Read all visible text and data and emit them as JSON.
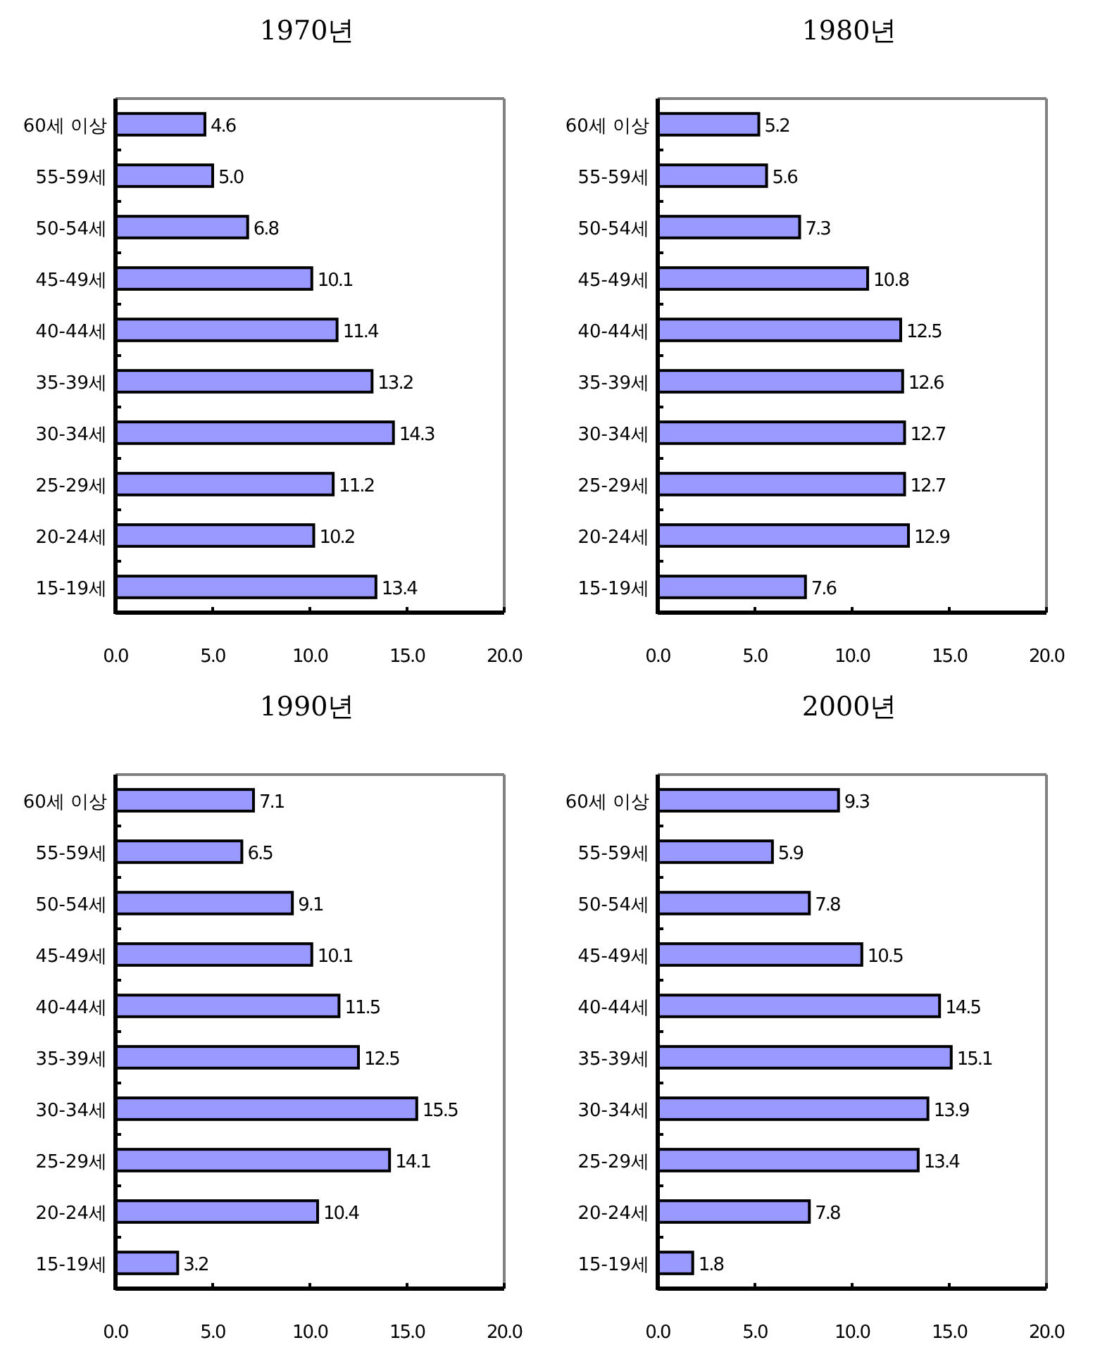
{
  "chart_data": [
    {
      "type": "bar",
      "orientation": "horizontal",
      "title": "1970년",
      "categories": [
        "60세 이상",
        "55-59세",
        "50-54세",
        "45-49세",
        "40-44세",
        "35-39세",
        "30-34세",
        "25-29세",
        "20-24세",
        "15-19세"
      ],
      "values": [
        4.6,
        5.0,
        6.8,
        10.1,
        11.4,
        13.2,
        14.3,
        11.2,
        10.2,
        13.4
      ],
      "color": "#9999ff",
      "value_labels": [
        "4.6",
        "5.0",
        "6.8",
        "10.1",
        "11.4",
        "13.2",
        "14.3",
        "11.2",
        "10.2",
        "13.4"
      ],
      "xlim": [
        0,
        20
      ],
      "xticks": [
        {
          "value": 0,
          "label": "0.0"
        },
        {
          "value": 5,
          "label": "5.0"
        },
        {
          "value": 10,
          "label": "10.0"
        },
        {
          "value": 15,
          "label": "15.0"
        },
        {
          "value": 20,
          "label": "20.0"
        }
      ]
    },
    {
      "type": "bar",
      "orientation": "horizontal",
      "title": "1980년",
      "categories": [
        "60세 이상",
        "55-59세",
        "50-54세",
        "45-49세",
        "40-44세",
        "35-39세",
        "30-34세",
        "25-29세",
        "20-24세",
        "15-19세"
      ],
      "values": [
        5.2,
        5.6,
        7.3,
        10.8,
        12.5,
        12.6,
        12.7,
        12.7,
        12.9,
        7.6
      ],
      "color": "#9999ff",
      "data_labels": true,
      "xlim": [
        0,
        20
      ],
      "xticks": [
        {
          "value": 0,
          "label": "0.0"
        },
        {
          "value": 5,
          "label": "5.0"
        },
        {
          "value": 10,
          "label": "10.0"
        },
        {
          "value": 15,
          "label": "15.0"
        },
        {
          "value": 20,
          "label": "20.0"
        }
      ]
    },
    {
      "type": "bar",
      "orientation": "horizontal",
      "title": "1990년",
      "categories": [
        "60세 이상",
        "55-59세",
        "50-54세",
        "45-49세",
        "40-44세",
        "35-39세",
        "30-34세",
        "25-29세",
        "20-24세",
        "15-19세"
      ],
      "values": [
        7.1,
        6.5,
        9.1,
        10.1,
        11.5,
        12.5,
        15.5,
        14.1,
        10.4,
        3.2
      ],
      "color": "#9999ff",
      "data_labels": true,
      "xlim": [
        0,
        20
      ],
      "xticks": [
        {
          "value": 0,
          "label": "0.0"
        },
        {
          "value": 5,
          "label": "5.0"
        },
        {
          "value": 10,
          "label": "10.0"
        },
        {
          "value": 15,
          "label": "15.0"
        },
        {
          "value": 20,
          "label": "20.0"
        }
      ]
    },
    {
      "type": "bar",
      "orientation": "horizontal",
      "title": "2000년",
      "categories": [
        "60세 이상",
        "55-59세",
        "50-54세",
        "45-49세",
        "40-44세",
        "35-39세",
        "30-34세",
        "25-29세",
        "20-24세",
        "15-19세"
      ],
      "values": [
        9.3,
        5.9,
        7.8,
        10.5,
        14.5,
        15.1,
        13.9,
        13.4,
        7.8,
        1.8
      ],
      "color": "#9999ff",
      "data_labels": true,
      "xlim": [
        0,
        20
      ],
      "xticks": [
        {
          "value": 0,
          "label": "0.0"
        },
        {
          "value": 5,
          "label": "5.0"
        },
        {
          "value": 10,
          "label": "10.0"
        },
        {
          "value": 15,
          "label": "15.0"
        },
        {
          "value": 20,
          "label": "20.0"
        }
      ]
    }
  ]
}
